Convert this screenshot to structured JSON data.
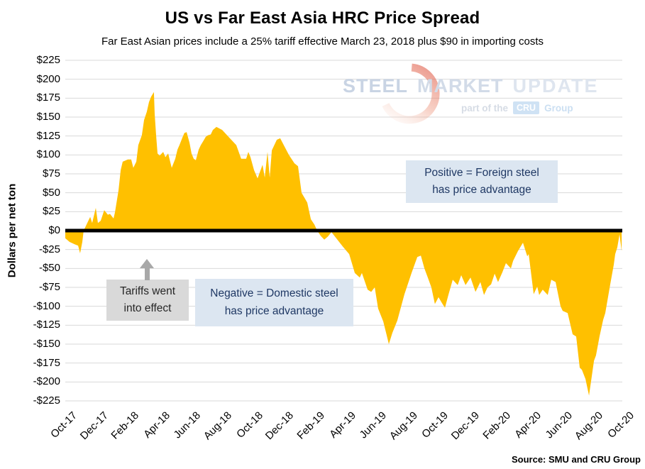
{
  "source": "Source: SMU and CRU Group",
  "watermark": {
    "word1": "STEEL",
    "word2": "MARKET",
    "word3": "UPDATE",
    "tagline_prefix": "part of the",
    "badge": "CRU",
    "tagline_suffix": "Group"
  },
  "annotations": {
    "positive": {
      "line1": "Positive = Foreign steel",
      "line2": "has price advantage"
    },
    "negative": {
      "line1": "Negative = Domestic steel",
      "line2": "has price advantage"
    },
    "tariffs": {
      "line1": "Tariffs went",
      "line2": "into effect"
    }
  },
  "colors": {
    "area_fill": "#FFC000",
    "zero_line": "#000000",
    "gridline": "#D9D9D9",
    "annotation_blue_bg": "#DCE6F1",
    "annotation_text": "#1F3864",
    "tariff_box_bg": "#D9D9D9",
    "tariff_box_text": "#262626",
    "arrow_gray": "#A8A8A8",
    "watermark_blue": "#C9D4E4",
    "watermark_red": "#E0604C",
    "cru_badge_bg": "#CFE2F4"
  },
  "chart_data": {
    "type": "area",
    "title": "US vs Far East Asia HRC Price Spread",
    "subtitle": "Far East Asian prices include a 25% tariff effective March 23, 2018 plus $90 in importing costs",
    "ylabel": "Dollars per net ton",
    "xlabel": "",
    "ylim": [
      -225,
      225
    ],
    "ytick_step": 25,
    "grid": true,
    "legend": "none",
    "x_range_months": 36,
    "x_tick_labels": [
      "Oct-17",
      "Dec-17",
      "Feb-18",
      "Apr-18",
      "Jun-18",
      "Aug-18",
      "Oct-18",
      "Dec-18",
      "Feb-19",
      "Apr-19",
      "Jun-19",
      "Aug-19",
      "Oct-19",
      "Dec-19",
      "Feb-20",
      "Apr-20",
      "Jun-20",
      "Aug-20",
      "Oct-20"
    ],
    "y_tick_labels": [
      "$225",
      "$200",
      "$175",
      "$150",
      "$125",
      "$100",
      "$75",
      "$50",
      "$25",
      "$0",
      "-$25",
      "-$50",
      "-$75",
      "-$100",
      "-$125",
      "-$150",
      "-$175",
      "-$200",
      "-$225"
    ],
    "series": [
      {
        "name": "US minus Far East Asia HRC price spread ($/net ton)",
        "x_unit": "months_since_Oct-2017",
        "points": [
          [
            0,
            -10
          ],
          [
            0.28,
            -15
          ],
          [
            0.6,
            -18
          ],
          [
            0.83,
            -20
          ],
          [
            0.96,
            -30
          ],
          [
            1.1,
            -15
          ],
          [
            1.19,
            0
          ],
          [
            1.42,
            10
          ],
          [
            1.61,
            18
          ],
          [
            1.74,
            10
          ],
          [
            1.97,
            30
          ],
          [
            2.11,
            10
          ],
          [
            2.29,
            13
          ],
          [
            2.52,
            27
          ],
          [
            2.75,
            21
          ],
          [
            2.89,
            22
          ],
          [
            3.12,
            16
          ],
          [
            3.21,
            24
          ],
          [
            3.44,
            53
          ],
          [
            3.58,
            80
          ],
          [
            3.71,
            91
          ],
          [
            4.04,
            94
          ],
          [
            4.26,
            94
          ],
          [
            4.4,
            83
          ],
          [
            4.59,
            91
          ],
          [
            4.72,
            113
          ],
          [
            4.86,
            121
          ],
          [
            4.95,
            126
          ],
          [
            5.09,
            146
          ],
          [
            5.27,
            157
          ],
          [
            5.41,
            170
          ],
          [
            5.55,
            177
          ],
          [
            5.73,
            183
          ],
          [
            5.78,
            154
          ],
          [
            5.87,
            126
          ],
          [
            5.96,
            102
          ],
          [
            6.1,
            99
          ],
          [
            6.33,
            104
          ],
          [
            6.47,
            97
          ],
          [
            6.65,
            102
          ],
          [
            6.79,
            90
          ],
          [
            6.88,
            83
          ],
          [
            7.11,
            95
          ],
          [
            7.25,
            107
          ],
          [
            7.38,
            113
          ],
          [
            7.57,
            123
          ],
          [
            7.7,
            129
          ],
          [
            7.84,
            130
          ],
          [
            8.03,
            116
          ],
          [
            8.16,
            102
          ],
          [
            8.3,
            95
          ],
          [
            8.44,
            93
          ],
          [
            8.62,
            107
          ],
          [
            8.76,
            113
          ],
          [
            8.94,
            119
          ],
          [
            9.08,
            124
          ],
          [
            9.22,
            126
          ],
          [
            9.4,
            127
          ],
          [
            9.54,
            133
          ],
          [
            9.77,
            137
          ],
          [
            10.14,
            133
          ],
          [
            10.59,
            123
          ],
          [
            11.05,
            113
          ],
          [
            11.37,
            95
          ],
          [
            11.69,
            95
          ],
          [
            11.83,
            104
          ],
          [
            11.97,
            97
          ],
          [
            12.2,
            80
          ],
          [
            12.43,
            69
          ],
          [
            12.75,
            87
          ],
          [
            12.89,
            70
          ],
          [
            13.07,
            104
          ],
          [
            13.21,
            70
          ],
          [
            13.35,
            106
          ],
          [
            13.67,
            120
          ],
          [
            13.89,
            122
          ],
          [
            14.12,
            113
          ],
          [
            14.45,
            100
          ],
          [
            14.81,
            89
          ],
          [
            15.04,
            85
          ],
          [
            15.27,
            50
          ],
          [
            15.5,
            42
          ],
          [
            15.64,
            37
          ],
          [
            15.87,
            15
          ],
          [
            16.1,
            8
          ],
          [
            16.28,
            0
          ],
          [
            16.51,
            -7
          ],
          [
            16.74,
            -12
          ],
          [
            16.97,
            -8
          ],
          [
            17.2,
            -2
          ],
          [
            17.43,
            -8
          ],
          [
            17.93,
            -21
          ],
          [
            18.35,
            -31
          ],
          [
            18.71,
            -56
          ],
          [
            19.03,
            -62
          ],
          [
            19.17,
            -56
          ],
          [
            19.54,
            -78
          ],
          [
            19.77,
            -81
          ],
          [
            20,
            -75
          ],
          [
            20.22,
            -103
          ],
          [
            20.55,
            -120
          ],
          [
            20.77,
            -138
          ],
          [
            20.91,
            -150
          ],
          [
            21.14,
            -135
          ],
          [
            21.46,
            -119
          ],
          [
            21.92,
            -84
          ],
          [
            22.38,
            -56
          ],
          [
            22.75,
            -35
          ],
          [
            22.98,
            -33
          ],
          [
            23.21,
            -50
          ],
          [
            23.43,
            -62
          ],
          [
            23.66,
            -75
          ],
          [
            23.89,
            -97
          ],
          [
            24.12,
            -88
          ],
          [
            24.35,
            -96
          ],
          [
            24.54,
            -102
          ],
          [
            24.76,
            -85
          ],
          [
            25.04,
            -65
          ],
          [
            25.36,
            -72
          ],
          [
            25.59,
            -59
          ],
          [
            25.87,
            -72
          ],
          [
            26.19,
            -62
          ],
          [
            26.51,
            -81
          ],
          [
            26.83,
            -68
          ],
          [
            27.06,
            -85
          ],
          [
            27.29,
            -75
          ],
          [
            27.52,
            -71
          ],
          [
            27.75,
            -57
          ],
          [
            27.97,
            -68
          ],
          [
            28.25,
            -55
          ],
          [
            28.48,
            -43
          ],
          [
            28.8,
            -50
          ],
          [
            28.94,
            -40
          ],
          [
            29.26,
            -27
          ],
          [
            29.58,
            -16
          ],
          [
            29.86,
            -34
          ],
          [
            29.95,
            -31
          ],
          [
            30.27,
            -84
          ],
          [
            30.5,
            -74
          ],
          [
            30.63,
            -85
          ],
          [
            30.86,
            -78
          ],
          [
            31.18,
            -85
          ],
          [
            31.41,
            -65
          ],
          [
            31.69,
            -68
          ],
          [
            32.01,
            -100
          ],
          [
            32.15,
            -106
          ],
          [
            32.47,
            -109
          ],
          [
            32.79,
            -137
          ],
          [
            33.02,
            -140
          ],
          [
            33.25,
            -181
          ],
          [
            33.39,
            -184
          ],
          [
            33.62,
            -196
          ],
          [
            33.85,
            -218
          ],
          [
            34.17,
            -172
          ],
          [
            34.3,
            -165
          ],
          [
            34.53,
            -140
          ],
          [
            34.76,
            -118
          ],
          [
            34.9,
            -109
          ],
          [
            35.22,
            -71
          ],
          [
            35.45,
            -45
          ],
          [
            35.54,
            -31
          ],
          [
            35.68,
            -22
          ],
          [
            35.82,
            -5
          ],
          [
            35.96,
            -27
          ]
        ]
      }
    ]
  }
}
